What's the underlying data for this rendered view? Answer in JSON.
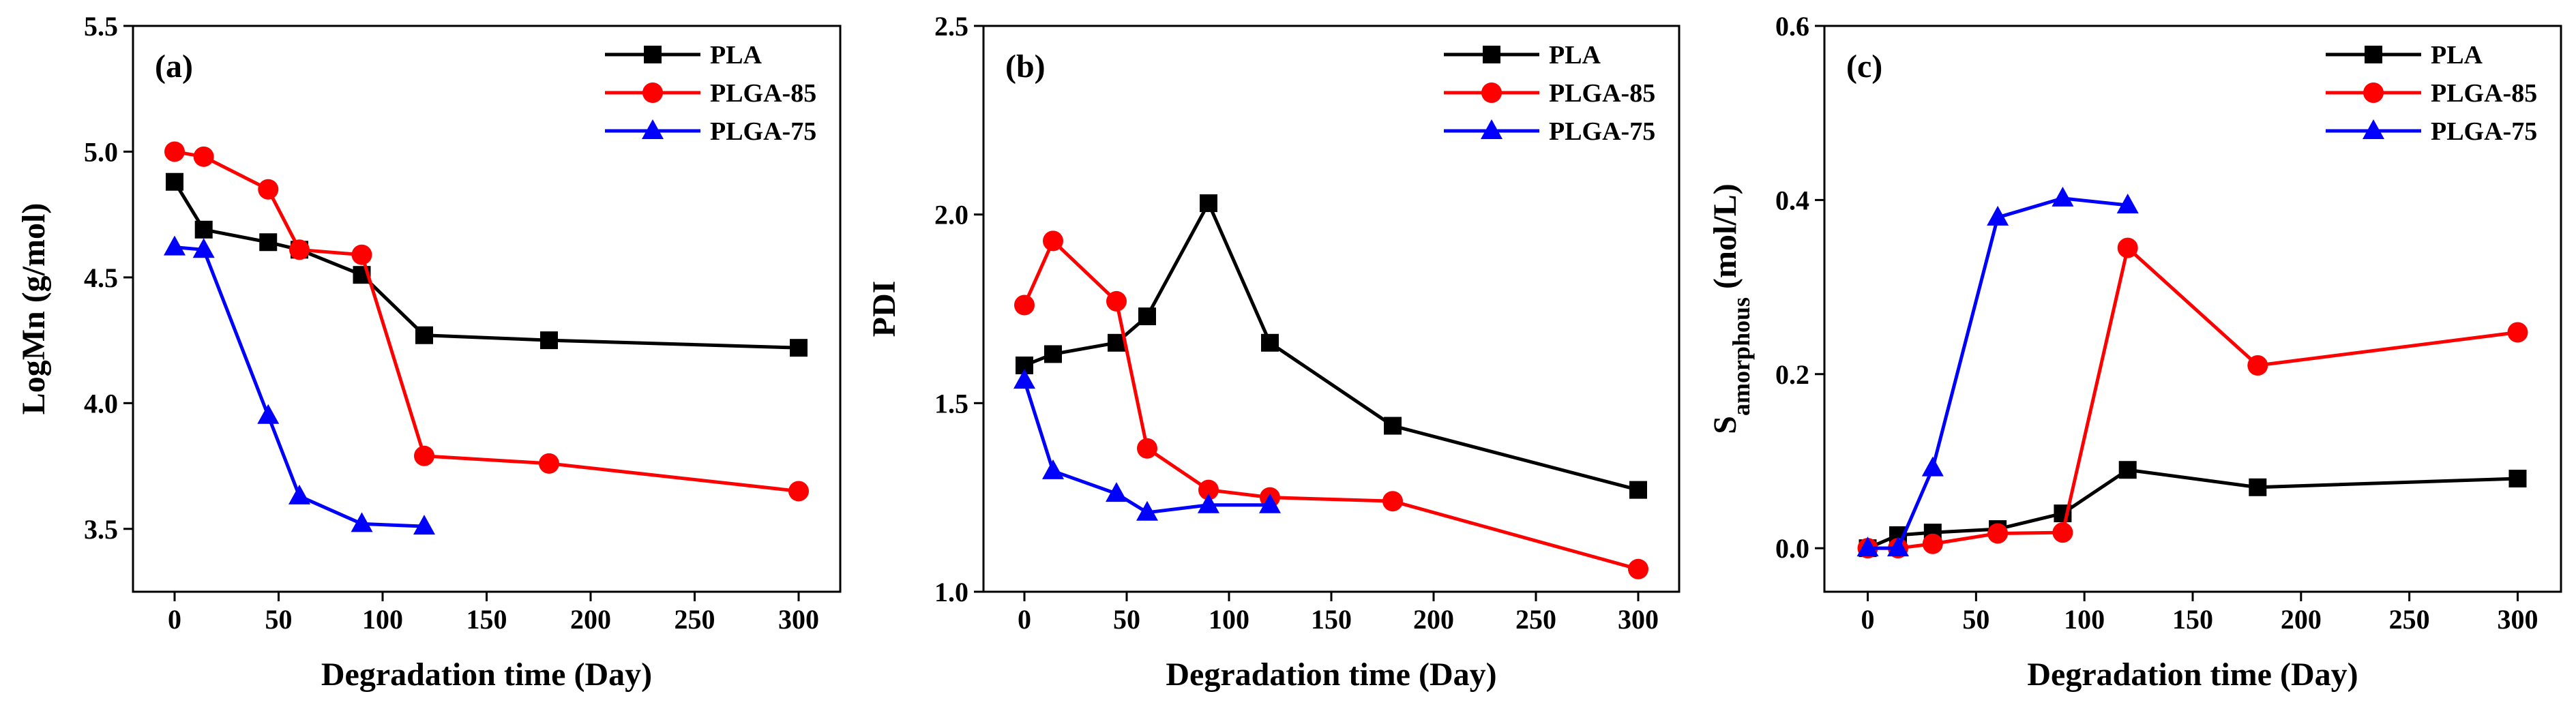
{
  "colors": {
    "PLA": "#000000",
    "PLGA-85": "#ff0000",
    "PLGA-75": "#0000ff"
  },
  "chart_data": [
    {
      "panel": "(a)",
      "type": "line",
      "xlabel": "Degradation time (Day)",
      "ylabel": "LogMn (g/mol)",
      "xlim": [
        -20,
        320
      ],
      "ylim": [
        3.25,
        5.5
      ],
      "xticks": [
        0,
        50,
        100,
        150,
        200,
        250,
        300
      ],
      "yticks": [
        3.5,
        4.0,
        4.5,
        5.0,
        5.5
      ],
      "xtick_labels": [
        "0",
        "50",
        "100",
        "150",
        "200",
        "250",
        "300"
      ],
      "ytick_labels": [
        "3.5",
        "4.0",
        "4.5",
        "5.0",
        "5.5"
      ],
      "legend_position": "top-right",
      "series": [
        {
          "name": "PLA",
          "marker": "square",
          "x": [
            0,
            14,
            45,
            60,
            90,
            120,
            180,
            300
          ],
          "y": [
            4.88,
            4.69,
            4.64,
            4.61,
            4.51,
            4.27,
            4.25,
            4.22
          ]
        },
        {
          "name": "PLGA-85",
          "marker": "circle",
          "x": [
            0,
            14,
            45,
            60,
            90,
            120,
            180,
            300
          ],
          "y": [
            5.0,
            4.98,
            4.85,
            4.61,
            4.59,
            3.79,
            3.76,
            3.65
          ]
        },
        {
          "name": "PLGA-75",
          "marker": "triangle",
          "x": [
            0,
            14,
            45,
            60,
            90,
            120
          ],
          "y": [
            4.62,
            4.61,
            3.95,
            3.63,
            3.52,
            3.51
          ]
        }
      ]
    },
    {
      "panel": "(b)",
      "type": "line",
      "xlabel": "Degradation time (Day)",
      "ylabel": "PDI",
      "xlim": [
        -20,
        320
      ],
      "ylim": [
        1.0,
        2.5
      ],
      "xticks": [
        0,
        50,
        100,
        150,
        200,
        250,
        300
      ],
      "yticks": [
        1.0,
        1.5,
        2.0,
        2.5
      ],
      "xtick_labels": [
        "0",
        "50",
        "100",
        "150",
        "200",
        "250",
        "300"
      ],
      "ytick_labels": [
        "1.0",
        "1.5",
        "2.0",
        "2.5"
      ],
      "legend_position": "top-right",
      "series": [
        {
          "name": "PLA",
          "marker": "square",
          "x": [
            0,
            14,
            45,
            60,
            90,
            120,
            180,
            300
          ],
          "y": [
            1.6,
            1.63,
            1.66,
            1.73,
            2.03,
            1.66,
            1.44,
            1.27
          ]
        },
        {
          "name": "PLGA-85",
          "marker": "circle",
          "x": [
            0,
            14,
            45,
            60,
            90,
            120,
            180,
            300
          ],
          "y": [
            1.76,
            1.93,
            1.77,
            1.38,
            1.27,
            1.25,
            1.24,
            1.06
          ]
        },
        {
          "name": "PLGA-75",
          "marker": "triangle",
          "x": [
            0,
            14,
            45,
            60,
            90,
            120
          ],
          "y": [
            1.56,
            1.32,
            1.26,
            1.21,
            1.23,
            1.23
          ]
        }
      ]
    },
    {
      "panel": "(c)",
      "type": "line",
      "xlabel": "Degradation time (Day)",
      "ylabel_main": "S",
      "ylabel_sub": "amorphous",
      "ylabel_rest": " (mol/L)",
      "xlim": [
        -20,
        320
      ],
      "ylim": [
        -0.05,
        0.6
      ],
      "xticks": [
        0,
        50,
        100,
        150,
        200,
        250,
        300
      ],
      "yticks": [
        0.0,
        0.2,
        0.4,
        0.6
      ],
      "xtick_labels": [
        "0",
        "50",
        "100",
        "150",
        "200",
        "250",
        "300"
      ],
      "ytick_labels": [
        "0.0",
        "0.2",
        "0.4",
        "0.6"
      ],
      "legend_position": "top-right",
      "series": [
        {
          "name": "PLA",
          "marker": "square",
          "x": [
            0,
            14,
            30,
            60,
            90,
            120,
            180,
            300
          ],
          "y": [
            0.0,
            0.015,
            0.018,
            0.022,
            0.04,
            0.09,
            0.07,
            0.08
          ]
        },
        {
          "name": "PLGA-85",
          "marker": "circle",
          "x": [
            0,
            14,
            30,
            60,
            90,
            120,
            180,
            300
          ],
          "y": [
            0.0,
            0.0,
            0.005,
            0.017,
            0.018,
            0.345,
            0.21,
            0.248
          ]
        },
        {
          "name": "PLGA-75",
          "marker": "triangle",
          "x": [
            0,
            14,
            30,
            60,
            90,
            120
          ],
          "y": [
            0.0,
            0.0,
            0.092,
            0.38,
            0.402,
            0.394
          ]
        }
      ]
    }
  ]
}
